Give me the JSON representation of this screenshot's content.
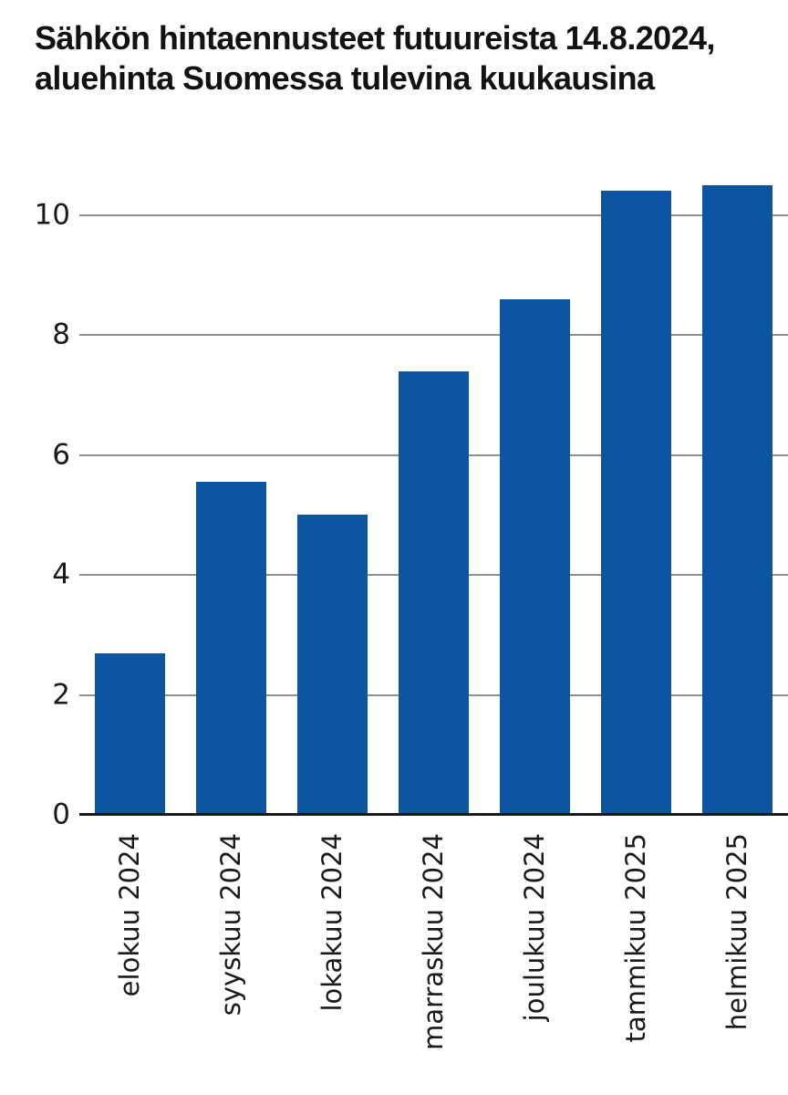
{
  "title": "Sähkön hintaennusteet futuureista 14.8.2024,\naluehinta Suomessa tulevina kuukausina",
  "colors": {
    "bar": "#0B55A1",
    "gridline": "#8F8F8F",
    "baseline": "#1A1A1A",
    "title_text": "#121212",
    "tick_text": "#1A1A1A",
    "background": "#FFFFFF"
  },
  "chart_data": {
    "type": "bar",
    "title": "Sähkön hintaennusteet futuureista 14.8.2024, aluehinta Suomessa tulevina kuukausina",
    "categories": [
      "elokuu 2024",
      "syyskuu 2024",
      "lokakuu 2024",
      "marraskuu 2024",
      "joulukuu 2024",
      "tammikuu 2025",
      "helmikuu 2025"
    ],
    "values": [
      2.7,
      5.55,
      5.0,
      7.4,
      8.6,
      10.4,
      10.5
    ],
    "xlabel": "",
    "ylabel": "",
    "ylim": [
      0,
      10.65
    ],
    "yticks": [
      0,
      2,
      4,
      6,
      8,
      10
    ],
    "grid": true,
    "legend": false,
    "x_tick_rotation_degrees": 90
  }
}
